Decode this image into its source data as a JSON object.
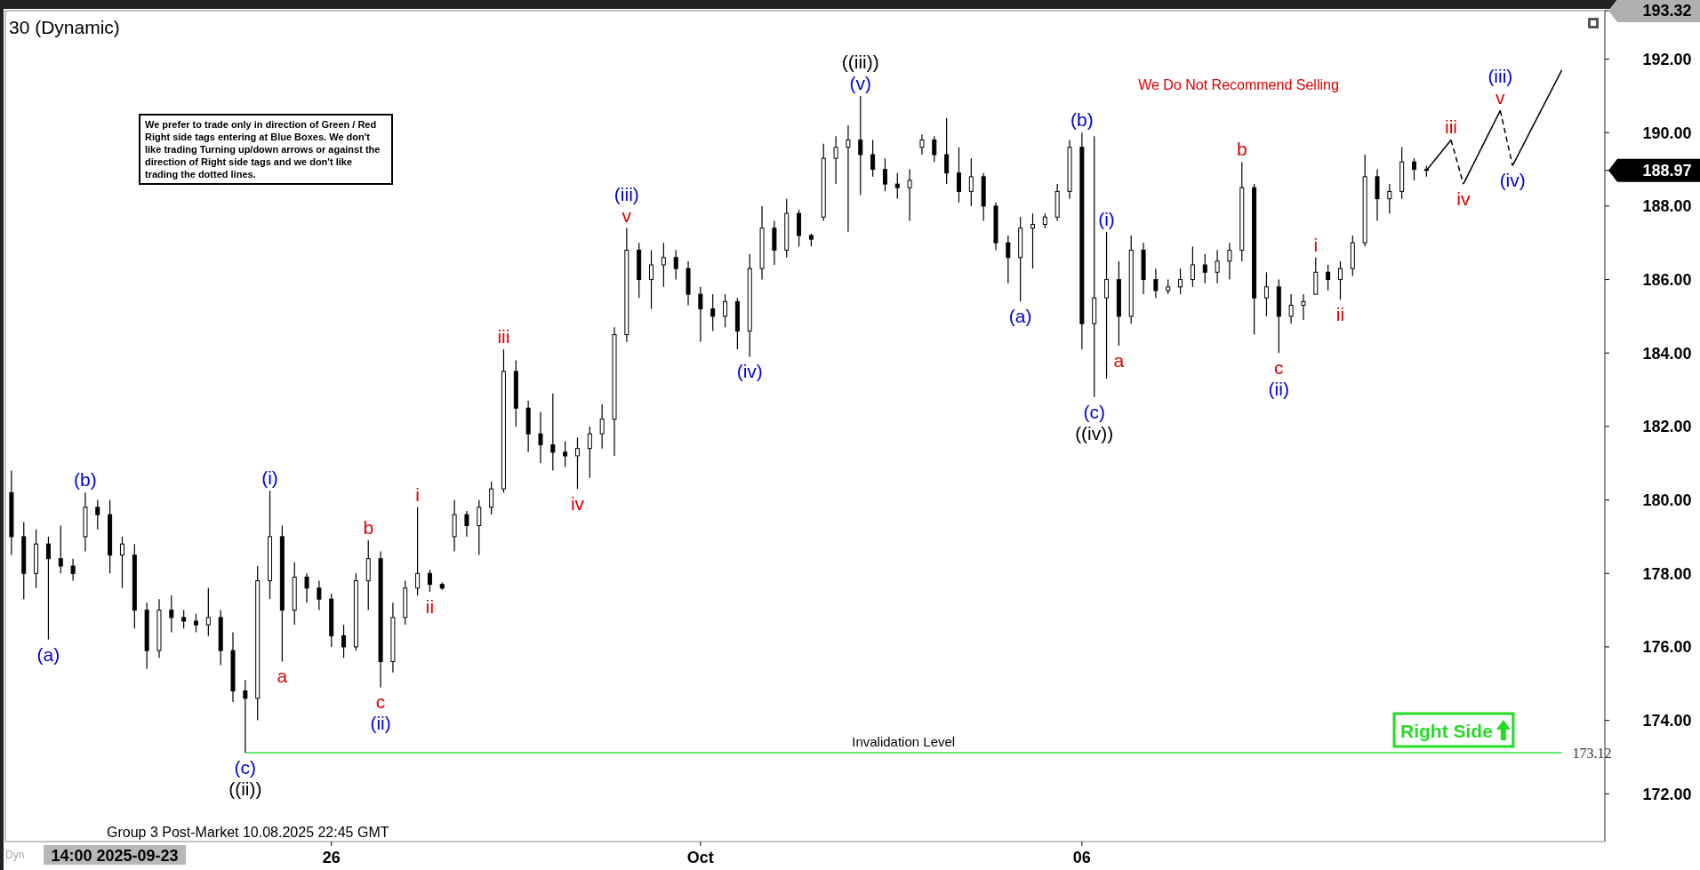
{
  "chart_data": {
    "type": "candlestick",
    "title": "30 (Dynamic)",
    "categories": [
      null,
      null,
      null,
      null,
      null,
      null,
      null,
      null,
      null,
      null,
      null,
      null,
      null,
      null,
      null,
      null,
      null,
      null,
      null,
      null,
      null,
      null,
      null,
      null,
      null,
      null,
      "26",
      null,
      null,
      null,
      null,
      null,
      null,
      null,
      null,
      null,
      null,
      null,
      null,
      null,
      null,
      null,
      null,
      null,
      null,
      null,
      null,
      null,
      null,
      null,
      null,
      null,
      null,
      null,
      null,
      null,
      "Oct",
      null,
      null,
      null,
      null,
      null,
      null,
      null,
      null,
      null,
      null,
      null,
      null,
      null,
      null,
      null,
      null,
      null,
      null,
      null,
      null,
      null,
      null,
      null,
      null,
      null,
      null,
      null,
      null,
      null,
      null,
      "06",
      null,
      null,
      null,
      null,
      null,
      null,
      null,
      null,
      null,
      null,
      null,
      null,
      null,
      null,
      null,
      null,
      null,
      null,
      null,
      null,
      null,
      null,
      null,
      null,
      null,
      null,
      null,
      null,
      null,
      null,
      null,
      null,
      null,
      null,
      null,
      null,
      null,
      null,
      null,
      null,
      null,
      null
    ],
    "ohlc": [
      [
        180.2,
        180.8,
        178.5,
        179.0
      ],
      [
        179.0,
        179.4,
        177.3,
        178.0
      ],
      [
        178.0,
        179.2,
        177.6,
        178.8
      ],
      [
        178.8,
        179.0,
        176.2,
        178.4
      ],
      [
        178.4,
        179.3,
        178.0,
        178.2
      ],
      [
        178.2,
        178.4,
        177.8,
        178.0
      ],
      [
        179.0,
        180.2,
        178.6,
        179.8
      ],
      [
        179.8,
        180.0,
        179.2,
        179.6
      ],
      [
        179.6,
        180.0,
        178.0,
        178.5
      ],
      [
        178.5,
        179.0,
        177.6,
        178.8
      ],
      [
        178.5,
        178.8,
        176.5,
        177.0
      ],
      [
        177.0,
        177.2,
        175.4,
        175.9
      ],
      [
        175.9,
        177.3,
        175.7,
        177.0
      ],
      [
        177.0,
        177.4,
        176.4,
        176.8
      ],
      [
        176.8,
        177.0,
        176.5,
        176.7
      ],
      [
        176.7,
        176.9,
        176.4,
        176.6
      ],
      [
        176.6,
        177.6,
        176.3,
        176.8
      ],
      [
        176.8,
        177.0,
        175.5,
        175.9
      ],
      [
        175.9,
        176.4,
        174.5,
        174.8
      ],
      [
        174.8,
        175.1,
        173.12,
        174.6
      ],
      [
        174.6,
        178.2,
        174.0,
        177.8
      ],
      [
        177.8,
        180.25,
        177.3,
        179.0
      ],
      [
        179.0,
        179.3,
        175.6,
        177.0
      ],
      [
        177.0,
        178.3,
        176.6,
        177.9
      ],
      [
        177.9,
        178.0,
        177.2,
        177.6
      ],
      [
        177.6,
        177.8,
        177.0,
        177.3
      ],
      [
        177.3,
        177.45,
        176.0,
        176.3
      ],
      [
        176.3,
        176.6,
        175.7,
        176.0
      ],
      [
        176.0,
        178.0,
        175.9,
        177.8
      ],
      [
        177.8,
        178.9,
        177.0,
        178.4
      ],
      [
        178.4,
        178.6,
        174.9,
        175.6
      ],
      [
        175.6,
        177.2,
        175.3,
        176.8
      ],
      [
        176.8,
        177.8,
        176.6,
        177.6
      ],
      [
        177.6,
        179.8,
        177.4,
        178.0
      ],
      [
        178.0,
        178.1,
        177.5,
        177.7
      ],
      [
        177.7,
        177.75,
        177.55,
        177.6
      ],
      [
        179.0,
        180.0,
        178.6,
        179.6
      ],
      [
        179.6,
        179.7,
        179.0,
        179.3
      ],
      [
        179.3,
        180.0,
        178.5,
        179.8
      ],
      [
        179.8,
        180.5,
        179.6,
        180.3
      ],
      [
        180.3,
        184.1,
        180.2,
        183.5
      ],
      [
        183.5,
        183.8,
        182.0,
        182.5
      ],
      [
        182.5,
        182.7,
        181.3,
        181.8
      ],
      [
        181.8,
        182.4,
        181.0,
        181.5
      ],
      [
        181.5,
        182.9,
        180.8,
        181.3
      ],
      [
        181.3,
        181.6,
        180.9,
        181.2
      ],
      [
        181.2,
        181.7,
        180.3,
        181.4
      ],
      [
        181.4,
        182.0,
        180.6,
        181.8
      ],
      [
        181.8,
        182.6,
        181.4,
        182.2
      ],
      [
        182.2,
        184.7,
        181.2,
        184.5
      ],
      [
        184.5,
        187.4,
        184.3,
        186.8
      ],
      [
        186.8,
        187.0,
        185.5,
        186.0
      ],
      [
        186.0,
        186.8,
        185.2,
        186.4
      ],
      [
        186.4,
        187.0,
        185.8,
        186.6
      ],
      [
        186.6,
        186.8,
        186.0,
        186.3
      ],
      [
        186.3,
        186.5,
        185.3,
        185.6
      ],
      [
        185.6,
        185.8,
        184.3,
        185.2
      ],
      [
        185.2,
        185.6,
        184.6,
        185.0
      ],
      [
        185.0,
        185.6,
        184.7,
        185.4
      ],
      [
        185.4,
        185.5,
        184.1,
        184.6
      ],
      [
        184.6,
        186.7,
        183.9,
        186.3
      ],
      [
        186.3,
        188.0,
        186.0,
        187.4
      ],
      [
        187.4,
        187.6,
        186.4,
        186.8
      ],
      [
        186.8,
        188.2,
        186.6,
        187.8
      ],
      [
        187.8,
        187.9,
        186.9,
        187.2
      ],
      [
        187.2,
        187.25,
        186.9,
        187.1
      ],
      [
        187.7,
        189.7,
        187.6,
        189.3
      ],
      [
        189.3,
        189.9,
        188.6,
        189.6
      ],
      [
        189.6,
        190.2,
        187.3,
        189.8
      ],
      [
        189.8,
        191.0,
        188.3,
        189.4
      ],
      [
        189.4,
        189.8,
        188.8,
        189.0
      ],
      [
        189.0,
        189.3,
        188.4,
        188.6
      ],
      [
        188.6,
        188.9,
        188.2,
        188.5
      ],
      [
        188.5,
        189.0,
        187.6,
        188.7
      ],
      [
        189.6,
        189.95,
        189.4,
        189.8
      ],
      [
        189.8,
        189.9,
        189.2,
        189.4
      ],
      [
        189.4,
        190.4,
        188.6,
        188.9
      ],
      [
        188.9,
        189.6,
        188.1,
        188.4
      ],
      [
        188.4,
        189.3,
        188.0,
        188.8
      ],
      [
        188.8,
        188.9,
        187.6,
        188.0
      ],
      [
        188.0,
        188.1,
        186.8,
        187.0
      ],
      [
        187.0,
        187.2,
        185.9,
        186.6
      ],
      [
        186.6,
        187.7,
        185.4,
        187.4
      ],
      [
        187.4,
        187.8,
        186.3,
        187.5
      ],
      [
        187.5,
        187.8,
        187.4,
        187.7
      ],
      [
        187.7,
        188.6,
        187.6,
        188.4
      ],
      [
        188.4,
        189.8,
        188.2,
        189.6
      ],
      [
        189.6,
        190.0,
        184.1,
        184.8
      ],
      [
        184.8,
        189.9,
        182.8,
        185.5
      ],
      [
        185.5,
        187.3,
        183.3,
        186.0
      ],
      [
        186.0,
        186.5,
        184.2,
        185.0
      ],
      [
        185.0,
        187.2,
        184.8,
        186.8
      ],
      [
        186.8,
        187.0,
        185.6,
        186.0
      ],
      [
        186.0,
        186.3,
        185.5,
        185.7
      ],
      [
        185.7,
        186.0,
        185.6,
        185.8
      ],
      [
        185.8,
        186.3,
        185.6,
        186.0
      ],
      [
        186.0,
        186.9,
        185.8,
        186.4
      ],
      [
        186.4,
        186.7,
        185.9,
        186.2
      ],
      [
        186.2,
        186.8,
        185.9,
        186.5
      ],
      [
        186.5,
        187.0,
        186.0,
        186.8
      ],
      [
        186.8,
        189.2,
        186.5,
        188.5
      ],
      [
        188.5,
        188.6,
        184.5,
        185.5
      ],
      [
        185.5,
        186.2,
        185.0,
        185.8
      ],
      [
        185.8,
        186.0,
        184.0,
        185.0
      ],
      [
        185.0,
        185.6,
        184.8,
        185.3
      ],
      [
        185.3,
        185.6,
        184.9,
        185.4
      ],
      [
        185.6,
        186.6,
        185.6,
        186.2
      ],
      [
        186.2,
        186.4,
        185.7,
        186.0
      ],
      [
        186.0,
        186.5,
        185.45,
        186.3
      ],
      [
        186.3,
        187.2,
        186.1,
        187.0
      ],
      [
        187.0,
        189.4,
        186.9,
        188.8
      ],
      [
        188.8,
        189.0,
        187.6,
        188.2
      ],
      [
        188.2,
        188.6,
        187.8,
        188.4
      ],
      [
        188.4,
        189.6,
        188.2,
        189.2
      ],
      [
        189.2,
        189.3,
        188.7,
        189.0
      ],
      [
        189.0,
        189.1,
        188.8,
        188.97
      ],
      null,
      null,
      null,
      null,
      null,
      null,
      null,
      null,
      null,
      null,
      null,
      null,
      null,
      null
    ],
    "series": [
      {
        "type": "line",
        "color": "#000000",
        "line_style": "solid",
        "values": [
          null,
          null,
          null,
          null,
          null,
          null,
          null,
          null,
          null,
          null,
          null,
          null,
          null,
          null,
          null,
          null,
          null,
          null,
          null,
          null,
          null,
          null,
          null,
          null,
          null,
          null,
          null,
          null,
          null,
          null,
          null,
          null,
          null,
          null,
          null,
          null,
          null,
          null,
          null,
          null,
          null,
          null,
          null,
          null,
          null,
          null,
          null,
          null,
          null,
          null,
          null,
          null,
          null,
          null,
          null,
          null,
          null,
          null,
          null,
          null,
          null,
          null,
          null,
          null,
          null,
          null,
          null,
          null,
          null,
          null,
          null,
          null,
          null,
          null,
          null,
          null,
          null,
          null,
          null,
          null,
          null,
          null,
          null,
          null,
          null,
          null,
          null,
          null,
          null,
          null,
          null,
          null,
          null,
          null,
          null,
          null,
          null,
          null,
          null,
          null,
          null,
          null,
          null,
          null,
          null,
          null,
          null,
          null,
          null,
          null,
          null,
          null,
          null,
          null,
          null,
          188.97,
          null,
          189.8,
          null,
          null,
          null,
          null,
          null,
          null,
          null,
          null,
          null,
          null,
          null,
          null
        ]
      },
      {
        "type": "line",
        "color": "#000000",
        "line_style": "dashed",
        "values": [
          null,
          null,
          null,
          null,
          null,
          null,
          null,
          null,
          null,
          null,
          null,
          null,
          null,
          null,
          null,
          null,
          null,
          null,
          null,
          null,
          null,
          null,
          null,
          null,
          null,
          null,
          null,
          null,
          null,
          null,
          null,
          null,
          null,
          null,
          null,
          null,
          null,
          null,
          null,
          null,
          null,
          null,
          null,
          null,
          null,
          null,
          null,
          null,
          null,
          null,
          null,
          null,
          null,
          null,
          null,
          null,
          null,
          null,
          null,
          null,
          null,
          null,
          null,
          null,
          null,
          null,
          null,
          null,
          null,
          null,
          null,
          null,
          null,
          null,
          null,
          null,
          null,
          null,
          null,
          null,
          null,
          null,
          null,
          null,
          null,
          null,
          null,
          null,
          null,
          null,
          null,
          null,
          null,
          null,
          null,
          null,
          null,
          null,
          null,
          null,
          null,
          null,
          null,
          null,
          null,
          null,
          null,
          null,
          null,
          null,
          null,
          null,
          null,
          null,
          null,
          null,
          null,
          189.8,
          188.6,
          null,
          null,
          null,
          null,
          null,
          null,
          null,
          null,
          null,
          null,
          null
        ]
      },
      {
        "type": "line",
        "color": "#000000",
        "line_style": "solid",
        "values": [
          null,
          null,
          null,
          null,
          null,
          null,
          null,
          null,
          null,
          null,
          null,
          null,
          null,
          null,
          null,
          null,
          null,
          null,
          null,
          null,
          null,
          null,
          null,
          null,
          null,
          null,
          null,
          null,
          null,
          null,
          null,
          null,
          null,
          null,
          null,
          null,
          null,
          null,
          null,
          null,
          null,
          null,
          null,
          null,
          null,
          null,
          null,
          null,
          null,
          null,
          null,
          null,
          null,
          null,
          null,
          null,
          null,
          null,
          null,
          null,
          null,
          null,
          null,
          null,
          null,
          null,
          null,
          null,
          null,
          null,
          null,
          null,
          null,
          null,
          null,
          null,
          null,
          null,
          null,
          null,
          null,
          null,
          null,
          null,
          null,
          null,
          null,
          null,
          null,
          null,
          null,
          null,
          null,
          null,
          null,
          null,
          null,
          null,
          null,
          null,
          null,
          null,
          null,
          null,
          null,
          null,
          null,
          null,
          null,
          null,
          null,
          null,
          null,
          null,
          null,
          null,
          null,
          null,
          188.6,
          null,
          null,
          190.6,
          null,
          null,
          null,
          null,
          null,
          null,
          null,
          null
        ]
      },
      {
        "type": "line",
        "color": "#000000",
        "line_style": "dashed",
        "values": [
          null,
          null,
          null,
          null,
          null,
          null,
          null,
          null,
          null,
          null,
          null,
          null,
          null,
          null,
          null,
          null,
          null,
          null,
          null,
          null,
          null,
          null,
          null,
          null,
          null,
          null,
          null,
          null,
          null,
          null,
          null,
          null,
          null,
          null,
          null,
          null,
          null,
          null,
          null,
          null,
          null,
          null,
          null,
          null,
          null,
          null,
          null,
          null,
          null,
          null,
          null,
          null,
          null,
          null,
          null,
          null,
          null,
          null,
          null,
          null,
          null,
          null,
          null,
          null,
          null,
          null,
          null,
          null,
          null,
          null,
          null,
          null,
          null,
          null,
          null,
          null,
          null,
          null,
          null,
          null,
          null,
          null,
          null,
          null,
          null,
          null,
          null,
          null,
          null,
          null,
          null,
          null,
          null,
          null,
          null,
          null,
          null,
          null,
          null,
          null,
          null,
          null,
          null,
          null,
          null,
          null,
          null,
          null,
          null,
          null,
          null,
          null,
          null,
          null,
          null,
          null,
          null,
          null,
          null,
          null,
          null,
          190.6,
          189.1,
          null,
          null,
          null,
          null,
          null,
          null,
          null
        ]
      },
      {
        "type": "line",
        "color": "#000000",
        "line_style": "solid",
        "values": [
          null,
          null,
          null,
          null,
          null,
          null,
          null,
          null,
          null,
          null,
          null,
          null,
          null,
          null,
          null,
          null,
          null,
          null,
          null,
          null,
          null,
          null,
          null,
          null,
          null,
          null,
          null,
          null,
          null,
          null,
          null,
          null,
          null,
          null,
          null,
          null,
          null,
          null,
          null,
          null,
          null,
          null,
          null,
          null,
          null,
          null,
          null,
          null,
          null,
          null,
          null,
          null,
          null,
          null,
          null,
          null,
          null,
          null,
          null,
          null,
          null,
          null,
          null,
          null,
          null,
          null,
          null,
          null,
          null,
          null,
          null,
          null,
          null,
          null,
          null,
          null,
          null,
          null,
          null,
          null,
          null,
          null,
          null,
          null,
          null,
          null,
          null,
          null,
          null,
          null,
          null,
          null,
          null,
          null,
          null,
          null,
          null,
          null,
          null,
          null,
          null,
          null,
          null,
          null,
          null,
          null,
          null,
          null,
          null,
          null,
          null,
          null,
          null,
          null,
          null,
          null,
          null,
          null,
          null,
          null,
          null,
          null,
          189.1,
          null,
          null,
          null,
          191.7,
          null,
          null,
          null
        ]
      }
    ],
    "ylim": [
      170.7,
      193.32
    ],
    "yticks": [
      {
        "value": 172,
        "label": "172.00"
      },
      {
        "value": 174,
        "label": "174.00"
      },
      {
        "value": 176,
        "label": "176.00"
      },
      {
        "value": 178,
        "label": "178.00"
      },
      {
        "value": 180,
        "label": "180.00"
      },
      {
        "value": 182,
        "label": "182.00"
      },
      {
        "value": 184,
        "label": "184.00"
      },
      {
        "value": 186,
        "label": "186.00"
      },
      {
        "value": 188,
        "label": "188.00"
      },
      {
        "value": 188.97,
        "label": "188.97"
      },
      {
        "value": 190,
        "label": "190.00"
      },
      {
        "value": 192,
        "label": "192.00"
      },
      {
        "value": 193.32,
        "label": "193.32"
      }
    ],
    "ref_lines": [
      {
        "axis": "y",
        "value": 173.12,
        "label": "Invalidation Level",
        "color": "#33dd33"
      }
    ],
    "annotations": [
      "We prefer to trade only in direction of Green / Red Right side tags entering at Blue Boxes. We don't like trading Turning up/down arrows or against the direction of Right side tags and we don't like trading the dotted lines.",
      "We Do Not Recommend Selling",
      "Right Side",
      "Group 3 Post-Market 10.08.2025 22:45 GMT",
      "14:00 2025-09-23",
      "Dyn",
      "173.12",
      {
        "text": "(a)",
        "y": 176.2
      },
      {
        "text": "(b)",
        "y": 180.2
      },
      {
        "text": "(c)",
        "y": 173.12
      },
      {
        "text": "((ii))",
        "y": 173.12
      },
      {
        "text": "(i)",
        "y": 180.25
      },
      {
        "text": "a",
        "y": 175.6
      },
      {
        "text": "b",
        "y": 178.9
      },
      {
        "text": "c",
        "y": 174.9
      },
      {
        "text": "(ii)",
        "y": 174.9
      },
      {
        "text": "i",
        "y": 179.8
      },
      {
        "text": "ii",
        "y": 177.5
      },
      {
        "text": "iii",
        "y": 184.1
      },
      {
        "text": "iv",
        "y": 180.3
      },
      {
        "text": "v",
        "y": 187.4
      },
      {
        "text": "(iii)",
        "y": 187.4
      },
      {
        "text": "(iv)",
        "y": 183.9
      },
      {
        "text": "(v)",
        "y": 191.0
      },
      {
        "text": "((iii))",
        "y": 191.0
      },
      {
        "text": "(a)",
        "y": 185.4
      },
      {
        "text": "(b)",
        "y": 190.0
      },
      {
        "text": "(c)",
        "y": 182.8
      },
      {
        "text": "((iv))",
        "y": 182.8
      },
      {
        "text": "(i)",
        "y": 187.3
      },
      {
        "text": "a",
        "y": 184.2
      },
      {
        "text": "b",
        "y": 189.2
      },
      {
        "text": "c",
        "y": 184.0
      },
      {
        "text": "(ii)",
        "y": 184.0
      },
      {
        "text": "i",
        "y": 186.6
      },
      {
        "text": "ii",
        "y": 185.45
      },
      {
        "text": "iii",
        "y": 189.8
      },
      {
        "text": "iv",
        "y": 188.6
      },
      {
        "text": "v",
        "y": 190.6
      },
      {
        "text": "(iii)",
        "y": 190.6
      },
      {
        "text": "(iv)",
        "y": 189.1
      }
    ]
  }
}
